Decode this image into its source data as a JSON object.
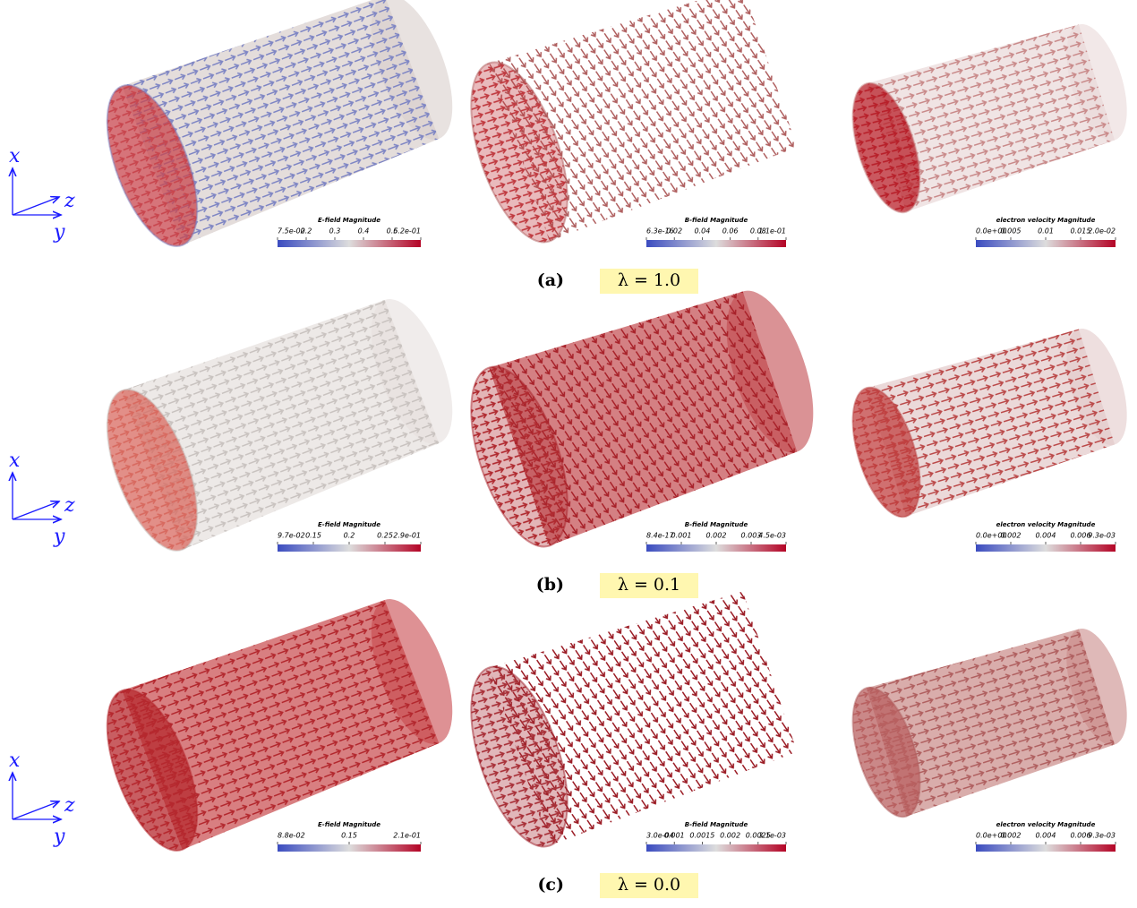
{
  "rows": [
    {
      "label": "(a)",
      "lambda": "λ = 1.0",
      "axes": {
        "x": "x",
        "z": "z",
        "y": "y"
      },
      "panels": [
        {
          "colorbar_title": "E-field Magnitude",
          "ticks": [
            "7.5e-02",
            "0.2",
            "0.3",
            "0.4",
            "0.5",
            "6.2e-01"
          ]
        },
        {
          "colorbar_title": "B-field Magnitude",
          "ticks": [
            "6.3e-16",
            "0.02",
            "0.04",
            "0.06",
            "0.08",
            "1.1e-01"
          ]
        },
        {
          "colorbar_title": "electron velocity Magnitude",
          "ticks": [
            "0.0e+00",
            "0.005",
            "0.01",
            "0.015",
            "2.0e-02"
          ]
        }
      ]
    },
    {
      "label": "(b)",
      "lambda": "λ = 0.1",
      "axes": {
        "x": "x",
        "z": "z",
        "y": "y"
      },
      "panels": [
        {
          "colorbar_title": "E-field Magnitude",
          "ticks": [
            "9.7e-02",
            "0.15",
            "0.2",
            "0.25",
            "2.9e-01"
          ]
        },
        {
          "colorbar_title": "B-field Magnitude",
          "ticks": [
            "8.4e-17",
            "0.001",
            "0.002",
            "0.003",
            "4.5e-03"
          ]
        },
        {
          "colorbar_title": "electron velocity Magnitude",
          "ticks": [
            "0.0e+00",
            "0.002",
            "0.004",
            "0.006",
            "9.3e-03"
          ]
        }
      ]
    },
    {
      "label": "(c)",
      "lambda": "λ = 0.0",
      "axes": {
        "x": "x",
        "z": "z",
        "y": "y"
      },
      "panels": [
        {
          "colorbar_title": "E-field Magnitude",
          "ticks": [
            "8.8e-02",
            "0.15",
            "2.1e-01"
          ]
        },
        {
          "colorbar_title": "B-field Magnitude",
          "ticks": [
            "3.0e-04",
            "0.001",
            "0.0015",
            "0.002",
            "0.0025",
            "3.1e-03"
          ]
        },
        {
          "colorbar_title": "electron velocity Magnitude",
          "ticks": [
            "0.0e+00",
            "0.002",
            "0.004",
            "0.006",
            "9.3e-03"
          ]
        }
      ]
    }
  ]
}
